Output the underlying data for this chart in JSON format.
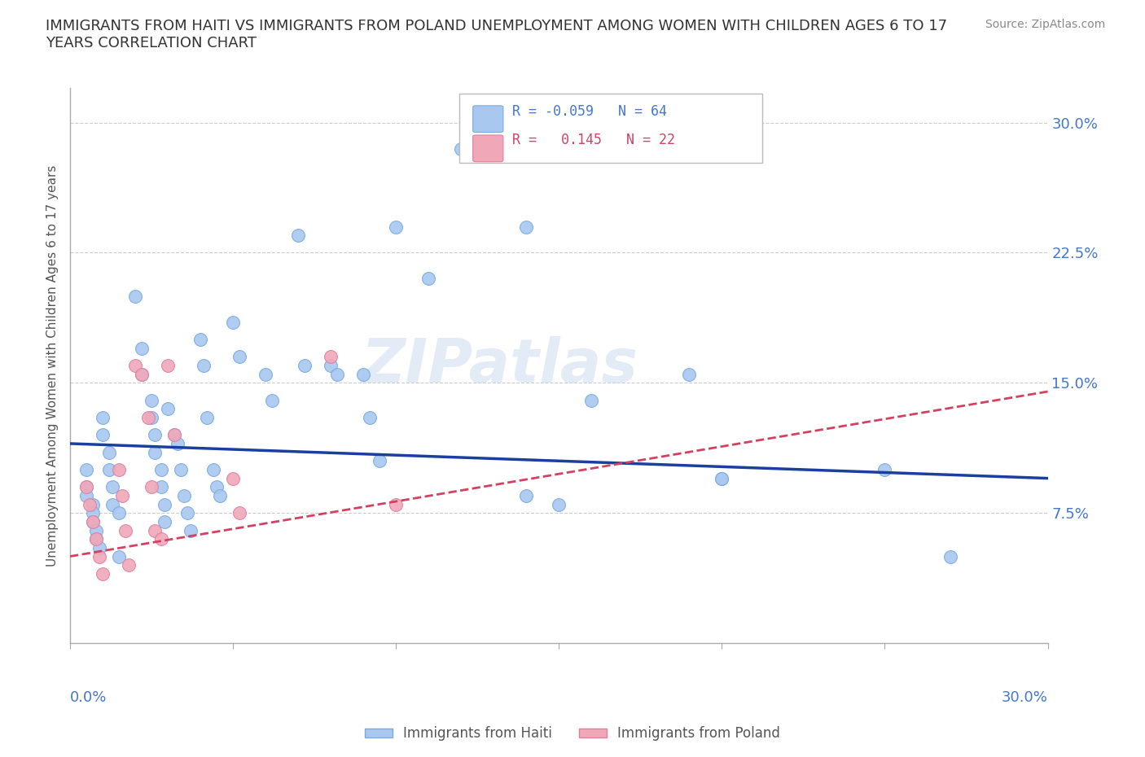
{
  "title": "IMMIGRANTS FROM HAITI VS IMMIGRANTS FROM POLAND UNEMPLOYMENT AMONG WOMEN WITH CHILDREN AGES 6 TO 17\nYEARS CORRELATION CHART",
  "source_text": "Source: ZipAtlas.com",
  "ylabel": "Unemployment Among Women with Children Ages 6 to 17 years",
  "xlim": [
    0.0,
    0.3
  ],
  "ylim": [
    0.0,
    0.32
  ],
  "yticks": [
    0.075,
    0.15,
    0.225,
    0.3
  ],
  "ytick_labels": [
    "7.5%",
    "15.0%",
    "22.5%",
    "30.0%"
  ],
  "haiti_color": "#a8c8f0",
  "poland_color": "#f0a8b8",
  "trend_haiti_color": "#1a3fa0",
  "trend_poland_color": "#d44060",
  "haiti_trend": [
    0.0,
    0.115,
    0.3,
    0.095
  ],
  "poland_trend": [
    0.0,
    0.05,
    0.3,
    0.145
  ],
  "watermark": "ZIPatlas",
  "haiti_scatter": [
    [
      0.005,
      0.1
    ],
    [
      0.005,
      0.09
    ],
    [
      0.005,
      0.085
    ],
    [
      0.007,
      0.08
    ],
    [
      0.007,
      0.075
    ],
    [
      0.007,
      0.07
    ],
    [
      0.008,
      0.065
    ],
    [
      0.008,
      0.06
    ],
    [
      0.009,
      0.055
    ],
    [
      0.01,
      0.13
    ],
    [
      0.01,
      0.12
    ],
    [
      0.012,
      0.11
    ],
    [
      0.012,
      0.1
    ],
    [
      0.013,
      0.09
    ],
    [
      0.013,
      0.08
    ],
    [
      0.015,
      0.075
    ],
    [
      0.015,
      0.05
    ],
    [
      0.02,
      0.2
    ],
    [
      0.022,
      0.17
    ],
    [
      0.022,
      0.155
    ],
    [
      0.025,
      0.14
    ],
    [
      0.025,
      0.13
    ],
    [
      0.026,
      0.12
    ],
    [
      0.026,
      0.11
    ],
    [
      0.028,
      0.1
    ],
    [
      0.028,
      0.09
    ],
    [
      0.029,
      0.08
    ],
    [
      0.029,
      0.07
    ],
    [
      0.03,
      0.135
    ],
    [
      0.032,
      0.12
    ],
    [
      0.033,
      0.115
    ],
    [
      0.034,
      0.1
    ],
    [
      0.035,
      0.085
    ],
    [
      0.036,
      0.075
    ],
    [
      0.037,
      0.065
    ],
    [
      0.04,
      0.175
    ],
    [
      0.041,
      0.16
    ],
    [
      0.042,
      0.13
    ],
    [
      0.044,
      0.1
    ],
    [
      0.045,
      0.09
    ],
    [
      0.046,
      0.085
    ],
    [
      0.05,
      0.185
    ],
    [
      0.052,
      0.165
    ],
    [
      0.06,
      0.155
    ],
    [
      0.062,
      0.14
    ],
    [
      0.07,
      0.235
    ],
    [
      0.072,
      0.16
    ],
    [
      0.08,
      0.16
    ],
    [
      0.082,
      0.155
    ],
    [
      0.09,
      0.155
    ],
    [
      0.092,
      0.13
    ],
    [
      0.095,
      0.105
    ],
    [
      0.1,
      0.24
    ],
    [
      0.11,
      0.21
    ],
    [
      0.12,
      0.285
    ],
    [
      0.14,
      0.24
    ],
    [
      0.14,
      0.085
    ],
    [
      0.15,
      0.08
    ],
    [
      0.16,
      0.14
    ],
    [
      0.19,
      0.155
    ],
    [
      0.2,
      0.095
    ],
    [
      0.2,
      0.095
    ],
    [
      0.25,
      0.1
    ],
    [
      0.27,
      0.05
    ]
  ],
  "poland_scatter": [
    [
      0.005,
      0.09
    ],
    [
      0.006,
      0.08
    ],
    [
      0.007,
      0.07
    ],
    [
      0.008,
      0.06
    ],
    [
      0.009,
      0.05
    ],
    [
      0.01,
      0.04
    ],
    [
      0.015,
      0.1
    ],
    [
      0.016,
      0.085
    ],
    [
      0.017,
      0.065
    ],
    [
      0.018,
      0.045
    ],
    [
      0.02,
      0.16
    ],
    [
      0.022,
      0.155
    ],
    [
      0.024,
      0.13
    ],
    [
      0.025,
      0.09
    ],
    [
      0.026,
      0.065
    ],
    [
      0.028,
      0.06
    ],
    [
      0.03,
      0.16
    ],
    [
      0.032,
      0.12
    ],
    [
      0.05,
      0.095
    ],
    [
      0.052,
      0.075
    ],
    [
      0.08,
      0.165
    ],
    [
      0.1,
      0.08
    ]
  ]
}
